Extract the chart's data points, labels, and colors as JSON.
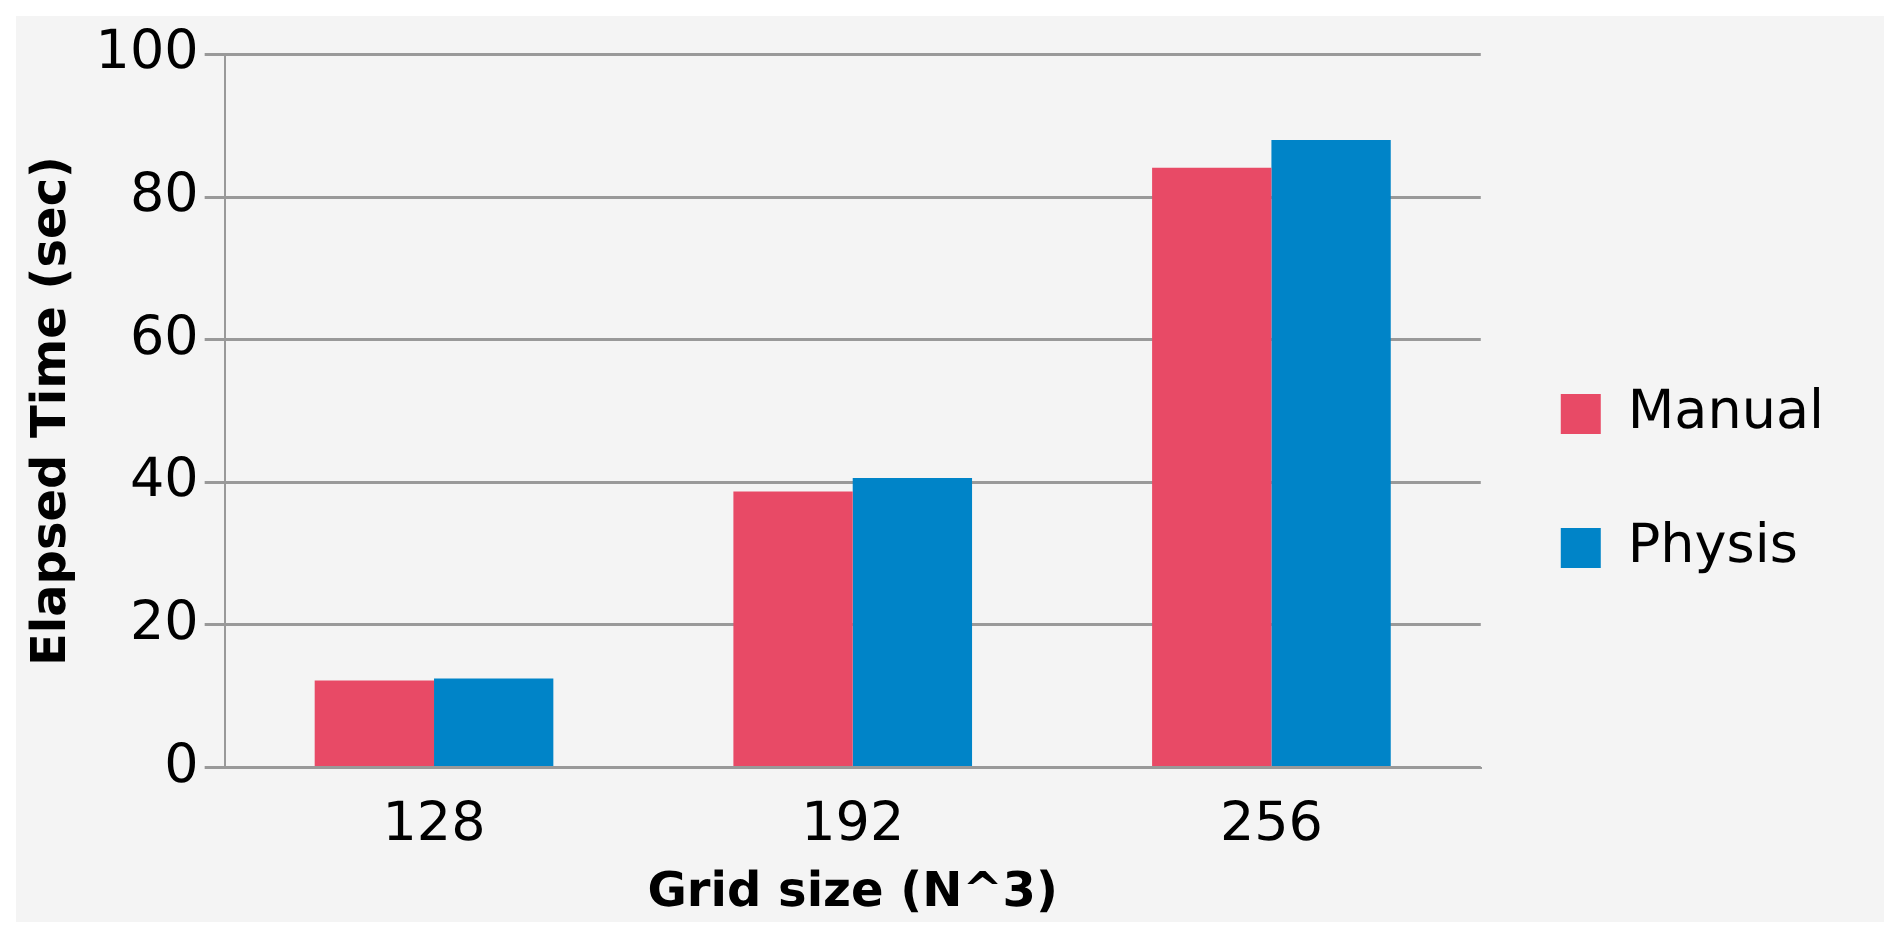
{
  "chart_data": {
    "type": "bar",
    "xlabel": "Grid size (N^3)",
    "ylabel": "Elapsed Time (sec)",
    "categories": [
      "128",
      "192",
      "256"
    ],
    "series": [
      {
        "name": "Manual",
        "color": "#e84a66",
        "values": [
          12.2,
          38.7,
          84.1
        ]
      },
      {
        "name": "Physis",
        "color": "#0084c8",
        "values": [
          12.5,
          40.6,
          88.0
        ]
      }
    ],
    "ylim": [
      0,
      100
    ],
    "yticks": [
      0,
      20,
      40,
      60,
      80,
      100
    ],
    "grid": "y",
    "legend": "right"
  }
}
